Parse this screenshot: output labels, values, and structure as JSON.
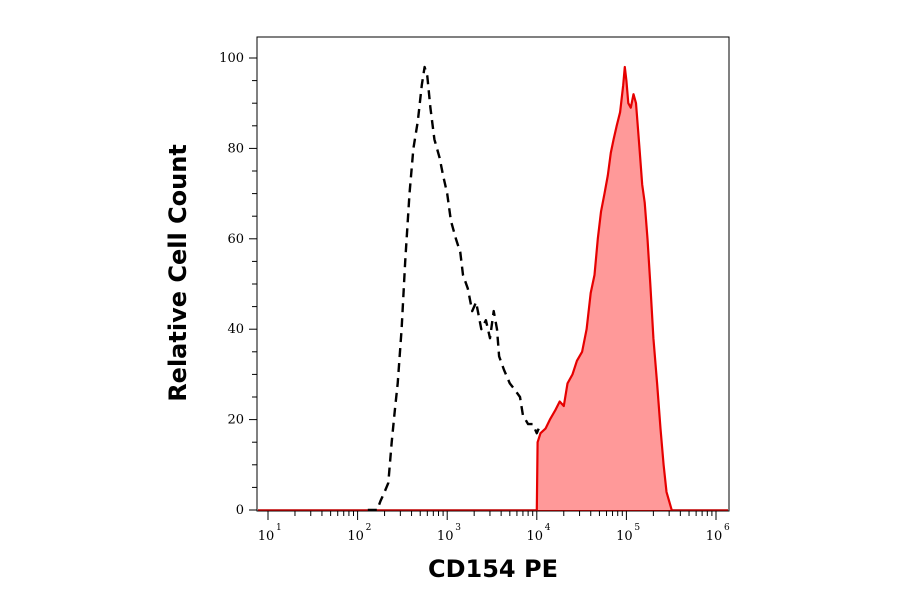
{
  "chart_data": {
    "type": "area",
    "xlabel": "CD154 PE",
    "ylabel": "Relative Cell Count",
    "xscale": "log",
    "xlim": [
      10,
      1000000
    ],
    "ylim": [
      0,
      100
    ],
    "x_ticks": [
      {
        "base": "10",
        "exp": "1"
      },
      {
        "base": "10",
        "exp": "2"
      },
      {
        "base": "10",
        "exp": "3"
      },
      {
        "base": "10",
        "exp": "4"
      },
      {
        "base": "10",
        "exp": "5"
      },
      {
        "base": "10",
        "exp": "6"
      }
    ],
    "y_ticks": [
      "0",
      "20",
      "40",
      "60",
      "80",
      "100"
    ],
    "series": [
      {
        "style": "dashed",
        "color": "#000000",
        "points": [
          [
            130,
            0
          ],
          [
            165,
            0
          ],
          [
            180,
            2
          ],
          [
            200,
            4
          ],
          [
            220,
            6
          ],
          [
            240,
            15
          ],
          [
            260,
            22
          ],
          [
            280,
            28
          ],
          [
            310,
            40
          ],
          [
            340,
            55
          ],
          [
            380,
            70
          ],
          [
            420,
            80
          ],
          [
            470,
            86
          ],
          [
            520,
            94
          ],
          [
            560,
            98
          ],
          [
            600,
            96
          ],
          [
            650,
            89
          ],
          [
            720,
            82
          ],
          [
            820,
            78
          ],
          [
            900,
            74
          ],
          [
            1000,
            70
          ],
          [
            1100,
            64
          ],
          [
            1250,
            60
          ],
          [
            1400,
            57
          ],
          [
            1500,
            52
          ],
          [
            1700,
            49
          ],
          [
            1900,
            44
          ],
          [
            2100,
            46
          ],
          [
            2400,
            40
          ],
          [
            2700,
            42
          ],
          [
            3000,
            38
          ],
          [
            3300,
            44
          ],
          [
            3600,
            40
          ],
          [
            3800,
            34
          ],
          [
            4300,
            31
          ],
          [
            5000,
            28
          ],
          [
            5500,
            27
          ],
          [
            6500,
            25
          ],
          [
            7000,
            21
          ],
          [
            8000,
            19
          ],
          [
            9000,
            19
          ],
          [
            10000,
            17
          ],
          [
            10500,
            18
          ]
        ]
      },
      {
        "style": "filled",
        "color": "#e60000",
        "fill": "#ff9999",
        "points": [
          [
            10000,
            0
          ],
          [
            10200,
            15
          ],
          [
            11000,
            17
          ],
          [
            12500,
            18
          ],
          [
            14000,
            20
          ],
          [
            16000,
            22
          ],
          [
            18000,
            24
          ],
          [
            20000,
            23
          ],
          [
            22000,
            28
          ],
          [
            25000,
            30
          ],
          [
            28000,
            33
          ],
          [
            32000,
            35
          ],
          [
            36000,
            40
          ],
          [
            40000,
            48
          ],
          [
            44000,
            52
          ],
          [
            48000,
            60
          ],
          [
            52000,
            66
          ],
          [
            57000,
            70
          ],
          [
            62000,
            74
          ],
          [
            67000,
            79
          ],
          [
            72000,
            82
          ],
          [
            78000,
            85
          ],
          [
            85000,
            88
          ],
          [
            92000,
            94
          ],
          [
            96000,
            98
          ],
          [
            100000,
            95
          ],
          [
            105000,
            90
          ],
          [
            112000,
            89
          ],
          [
            120000,
            92
          ],
          [
            128000,
            90
          ],
          [
            140000,
            80
          ],
          [
            150000,
            72
          ],
          [
            160000,
            68
          ],
          [
            172000,
            60
          ],
          [
            185000,
            50
          ],
          [
            200000,
            38
          ],
          [
            220000,
            28
          ],
          [
            240000,
            18
          ],
          [
            260000,
            10
          ],
          [
            280000,
            4
          ],
          [
            320000,
            0
          ]
        ]
      }
    ]
  }
}
